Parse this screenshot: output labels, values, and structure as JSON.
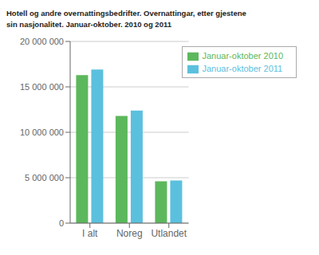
{
  "chart_data": {
    "type": "bar",
    "title": "Hotell og andre overnattingsbedrifter. Overnattingar, etter gjestene\nsin nasjonalitet. Januar-oktober. 2010 og 2011",
    "categories": [
      "I alt",
      "Noreg",
      "Utlandet"
    ],
    "series": [
      {
        "name": "Januar-oktober 2010",
        "color": "#5cb85c",
        "values": [
          16300000,
          11800000,
          4600000
        ]
      },
      {
        "name": "Januar-oktober 2011",
        "color": "#5bc0de",
        "values": [
          16900000,
          12400000,
          4700000
        ]
      }
    ],
    "ylim": [
      0,
      20000000
    ],
    "yticks": [
      0,
      {
        "value": 5000000,
        "label": "5 000 000"
      },
      {
        "value": 10000000,
        "label": "10 000 000"
      },
      {
        "value": 15000000,
        "label": "15 000 000"
      },
      {
        "value": 20000000,
        "label": "20 000 000"
      }
    ],
    "grid": true,
    "legend": "upper right"
  }
}
